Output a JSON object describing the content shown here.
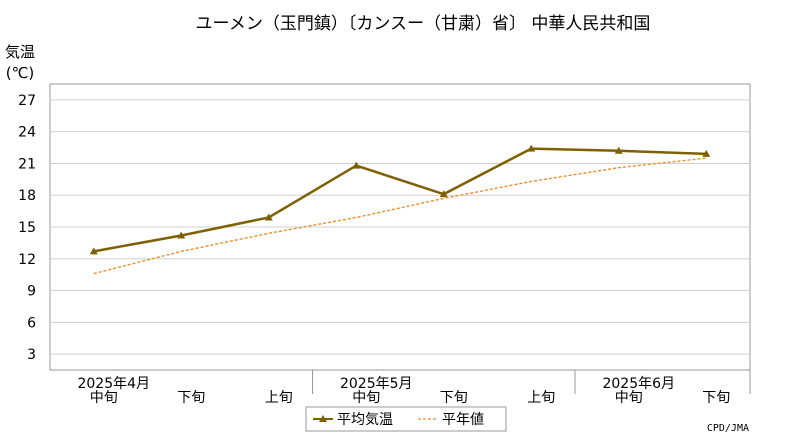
{
  "chart_data": {
    "type": "line",
    "title": "ユーメン（玉門鎮）〔カンスー（甘粛）省〕 中華人民共和国",
    "ylabel": "気温",
    "yunit": "(℃)",
    "ylim": [
      1.5,
      28.5
    ],
    "yticks": [
      3,
      6,
      9,
      12,
      15,
      18,
      21,
      24,
      27
    ],
    "grid": true,
    "legend_position": "bottom-center",
    "x": [
      "中旬",
      "下旬",
      "上旬",
      "中旬",
      "下旬",
      "上旬",
      "中旬",
      "下旬"
    ],
    "month_labels": [
      {
        "label": "2025年4月",
        "at": 0
      },
      {
        "label": "2025年5月",
        "at": 3
      },
      {
        "label": "2025年6月",
        "at": 6
      }
    ],
    "series": [
      {
        "name": "平均気温",
        "color": "#7f6000",
        "style": "solid-triangle-markers",
        "values": [
          12.7,
          14.2,
          15.9,
          20.8,
          18.1,
          22.4,
          22.2,
          21.9
        ]
      },
      {
        "name": "平年値",
        "color": "#f28c28",
        "style": "dashed",
        "values": [
          10.6,
          12.7,
          14.4,
          15.9,
          17.7,
          19.3,
          20.6,
          21.5
        ]
      }
    ],
    "credit": "CPD/JMA"
  }
}
